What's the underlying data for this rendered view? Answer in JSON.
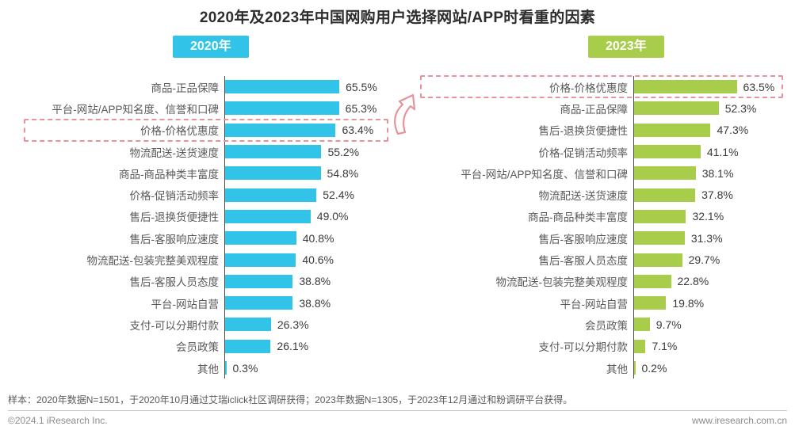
{
  "title": "2020年及2023年中国网购用户选择网站/APP时看重的因素",
  "colors": {
    "year2020_accent": "#31C4E8",
    "year2023_accent": "#A7CD4B",
    "highlight_dash": "#E8939C",
    "axis_line": "#4a4a4a"
  },
  "icons": {
    "trend_arrow": "curved-up-arrow"
  },
  "chart_data": [
    {
      "type": "bar",
      "title": "2020年",
      "orientation": "horizontal",
      "unit": "%",
      "bar_color": "#31C4E8",
      "xlim": [
        0,
        70
      ],
      "grid": false,
      "legend_position": "none",
      "highlight_index": 2,
      "categories": [
        "商品-正品保障",
        "平台-网站/APP知名度、信誉和口碑",
        "价格-价格优惠度",
        "物流配送-送货速度",
        "商品-商品种类丰富度",
        "价格-促销活动频率",
        "售后-退换货便捷性",
        "售后-客服响应速度",
        "物流配送-包装完整美观程度",
        "售后-客服人员态度",
        "平台-网站自营",
        "支付-可以分期付款",
        "会员政策",
        "其他"
      ],
      "values": [
        65.5,
        65.3,
        63.4,
        55.2,
        54.8,
        52.4,
        49.0,
        40.8,
        40.6,
        38.8,
        38.8,
        26.3,
        26.1,
        0.3
      ]
    },
    {
      "type": "bar",
      "title": "2023年",
      "orientation": "horizontal",
      "unit": "%",
      "bar_color": "#A7CD4B",
      "xlim": [
        0,
        70
      ],
      "grid": false,
      "legend_position": "none",
      "highlight_index": 0,
      "categories": [
        "价格-价格优惠度",
        "商品-正品保障",
        "售后-退换货便捷性",
        "价格-促销活动频率",
        "平台-网站/APP知名度、信誉和口碑",
        "物流配送-送货速度",
        "商品-商品种类丰富度",
        "售后-客服响应速度",
        "售后-客服人员态度",
        "物流配送-包装完整美观程度",
        "平台-网站自营",
        "会员政策",
        "支付-可以分期付款",
        "其他"
      ],
      "values": [
        63.5,
        52.3,
        47.3,
        41.1,
        38.1,
        37.8,
        32.1,
        31.3,
        29.7,
        22.8,
        19.8,
        9.7,
        7.1,
        0.2
      ]
    }
  ],
  "footnote": "样本：2020年数据N=1501，于2020年10月通过艾瑞iclick社区调研获得；2023年数据N=1305，于2023年12月通过和粉调研平台获得。",
  "footer": {
    "copyright": "©2024.1 iResearch Inc.",
    "website": "www.iresearch.com.cn"
  }
}
